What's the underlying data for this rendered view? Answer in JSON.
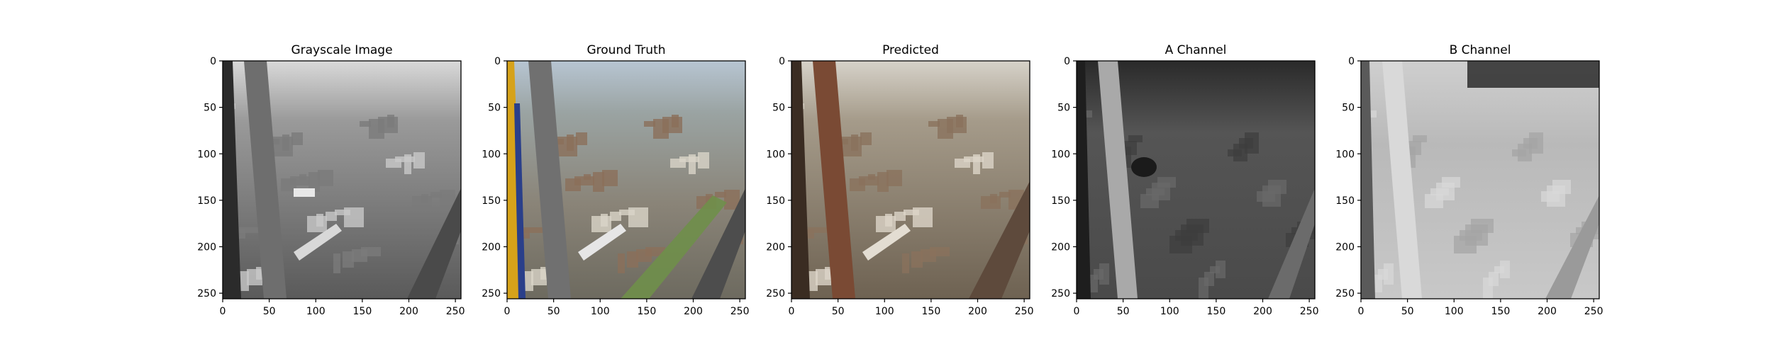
{
  "chart_data": [
    {
      "type": "image",
      "title": "Grayscale Image",
      "xticks": [
        0,
        50,
        100,
        150,
        200,
        250
      ],
      "yticks": [
        0,
        50,
        100,
        150,
        200,
        250
      ],
      "xlim": [
        0,
        256
      ],
      "ylim": [
        256,
        0
      ],
      "colormap": "gray",
      "image_desc": "aerial city view seen through structural beams, grayscale"
    },
    {
      "type": "image",
      "title": "Ground Truth",
      "xticks": [
        0,
        50,
        100,
        150,
        200,
        250
      ],
      "yticks": [
        0,
        50,
        100,
        150,
        200,
        250
      ],
      "xlim": [
        0,
        256
      ],
      "ylim": [
        256,
        0
      ],
      "colormap": "rgb",
      "image_desc": "full color aerial city view with blue/yellow frame and green rail corridor"
    },
    {
      "type": "image",
      "title": "Predicted",
      "xticks": [
        0,
        50,
        100,
        150,
        200,
        250
      ],
      "yticks": [
        0,
        50,
        100,
        150,
        200,
        250
      ],
      "xlim": [
        0,
        256
      ],
      "ylim": [
        256,
        0
      ],
      "colormap": "rgb",
      "image_desc": "colorized prediction with brown/red tint on beams"
    },
    {
      "type": "image",
      "title": "A Channel",
      "xticks": [
        0,
        50,
        100,
        150,
        200,
        250
      ],
      "yticks": [
        0,
        50,
        100,
        150,
        200,
        250
      ],
      "xlim": [
        0,
        256
      ],
      "ylim": [
        256,
        0
      ],
      "colormap": "gray",
      "image_desc": "dark gray A channel map with bright diagonal beam"
    },
    {
      "type": "image",
      "title": "B Channel",
      "xticks": [
        0,
        50,
        100,
        150,
        200,
        250
      ],
      "yticks": [
        0,
        50,
        100,
        150,
        200,
        250
      ],
      "xlim": [
        0,
        256
      ],
      "ylim": [
        256,
        0
      ],
      "colormap": "gray",
      "image_desc": "light gray B channel map, dark band at top-right"
    }
  ]
}
